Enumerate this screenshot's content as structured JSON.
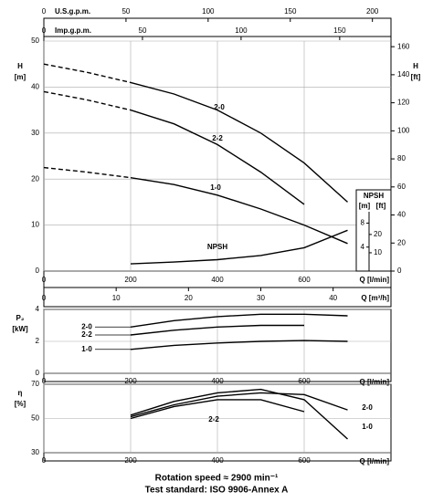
{
  "chart_data": [
    {
      "type": "line",
      "y_label": "H",
      "y_unit": "[m]",
      "y2_label": "H",
      "y2_unit": "[ft]",
      "x_label": "Q [l/min]",
      "x": [
        0,
        100,
        200,
        300,
        400,
        500,
        600,
        700
      ],
      "xlim": [
        0,
        800
      ],
      "xticks": [
        0,
        200,
        400,
        600
      ],
      "ylim": [
        0,
        50
      ],
      "yticks": [
        0,
        10,
        20,
        30,
        40,
        50
      ],
      "y2lim": [
        0,
        164
      ],
      "y2ticks": [
        0,
        20,
        40,
        60,
        80,
        100,
        120,
        140,
        160
      ],
      "grid": true,
      "dashed_below": 200,
      "series": [
        {
          "name": "2-0",
          "color": "#000000",
          "values": [
            45,
            43.2,
            41,
            38.5,
            35,
            30,
            23.5,
            15
          ]
        },
        {
          "name": "2-2",
          "color": "#000000",
          "values": [
            39,
            37.2,
            35,
            32,
            27.5,
            21.5,
            14.5,
            null
          ]
        },
        {
          "name": "1-0",
          "color": "#000000",
          "values": [
            22.5,
            21.5,
            20.3,
            18.8,
            16.5,
            13.5,
            10,
            6
          ]
        },
        {
          "name": "NPSH",
          "color": "#000000",
          "axis": "npsh",
          "values": [
            null,
            null,
            1.2,
            1.5,
            1.9,
            2.6,
            3.9,
            6.8
          ]
        }
      ],
      "npsh_axis": {
        "label": "NPSH",
        "unit_m": "[m]",
        "unit_ft": "[ft]",
        "lim": [
          0,
          10.5
        ],
        "ticks": [
          4,
          8
        ],
        "ft_lim": [
          0,
          34.4
        ],
        "ft_ticks": [
          10,
          20
        ]
      },
      "top_axes": [
        {
          "label": "U.S.g.p.m.",
          "lim": [
            0,
            211.3
          ],
          "ticks": [
            0,
            50,
            100,
            150,
            200
          ]
        },
        {
          "label": "Imp.g.p.m.",
          "lim": [
            0,
            176
          ],
          "ticks": [
            0,
            50,
            100,
            150
          ]
        }
      ],
      "bottom_axis2": {
        "label": "Q [m³/h]",
        "lim": [
          0,
          48
        ],
        "ticks": [
          0,
          10,
          20,
          30,
          40
        ]
      }
    },
    {
      "type": "line",
      "y_label": "P₂",
      "y_unit": "[kW]",
      "x_label": "Q [l/min]",
      "x": [
        200,
        300,
        400,
        500,
        600,
        700
      ],
      "xlim": [
        0,
        800
      ],
      "xticks": [
        0,
        200,
        400,
        600
      ],
      "ylim": [
        0,
        4
      ],
      "yticks": [
        0,
        2,
        4
      ],
      "grid": true,
      "series": [
        {
          "name": "2-0",
          "color": "#000000",
          "values": [
            2.9,
            3.3,
            3.55,
            3.7,
            3.7,
            3.6
          ]
        },
        {
          "name": "2-2",
          "color": "#000000",
          "values": [
            2.4,
            2.7,
            2.9,
            3.0,
            3.0,
            null
          ]
        },
        {
          "name": "1-0",
          "color": "#000000",
          "values": [
            1.5,
            1.75,
            1.9,
            2.0,
            2.05,
            2.0
          ]
        }
      ]
    },
    {
      "type": "line",
      "y_label": "η",
      "y_unit": "[%]",
      "x_label": "Q [l/min]",
      "x": [
        200,
        300,
        400,
        500,
        600,
        700
      ],
      "xlim": [
        0,
        800
      ],
      "xticks": [
        0,
        200,
        400,
        600
      ],
      "ylim": [
        30,
        70
      ],
      "yticks": [
        30,
        50,
        70
      ],
      "grid": true,
      "series": [
        {
          "name": "2-0",
          "color": "#000000",
          "values": [
            51,
            58,
            63,
            65,
            64,
            55
          ]
        },
        {
          "name": "2-2",
          "color": "#000000",
          "values": [
            50,
            57,
            61,
            61,
            54,
            null
          ]
        },
        {
          "name": "1-0",
          "color": "#000000",
          "values": [
            52,
            60,
            65,
            67,
            61,
            38
          ]
        }
      ]
    }
  ],
  "footer": [
    "Rotation speed ≈ 2900 min⁻¹",
    "Test standard: ISO 9906-Annex A"
  ]
}
